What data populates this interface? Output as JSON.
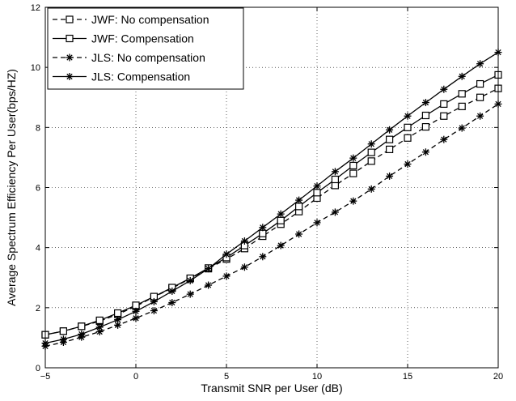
{
  "chart_data": {
    "type": "line",
    "title": "",
    "xlabel": "Transmit SNR per User (dB)",
    "ylabel": "Average Spectrum Efficiency Per User(bps/HZ)",
    "xlim": [
      -5,
      20
    ],
    "ylim": [
      0,
      12
    ],
    "xticks": [
      -5,
      0,
      5,
      10,
      15,
      20
    ],
    "yticks": [
      0,
      2,
      4,
      6,
      8,
      10,
      12
    ],
    "grid": true,
    "legend_position": "top-left",
    "x": [
      -5,
      -4,
      -3,
      -2,
      -1,
      0,
      1,
      2,
      3,
      4,
      5,
      6,
      7,
      8,
      9,
      10,
      11,
      12,
      13,
      14,
      15,
      16,
      17,
      18,
      19,
      20
    ],
    "series": [
      {
        "name": "JWF: No compensation",
        "line_style": "dashed",
        "marker": "square",
        "values": [
          1.1,
          1.22,
          1.38,
          1.55,
          1.78,
          2.05,
          2.36,
          2.65,
          2.97,
          3.3,
          3.62,
          3.97,
          4.38,
          4.78,
          5.2,
          5.65,
          6.07,
          6.47,
          6.88,
          7.27,
          7.65,
          8.02,
          8.38,
          8.7,
          9.0,
          9.3
        ]
      },
      {
        "name": "JWF: Compensation",
        "line_style": "solid",
        "marker": "square",
        "values": [
          1.1,
          1.22,
          1.38,
          1.58,
          1.82,
          2.08,
          2.37,
          2.67,
          2.98,
          3.32,
          3.67,
          4.07,
          4.47,
          4.9,
          5.37,
          5.83,
          6.27,
          6.73,
          7.17,
          7.6,
          8.0,
          8.4,
          8.78,
          9.12,
          9.45,
          9.75
        ]
      },
      {
        "name": "JLS: No compensation",
        "line_style": "dashed",
        "marker": "asterisk",
        "values": [
          0.72,
          0.85,
          1.02,
          1.2,
          1.42,
          1.65,
          1.9,
          2.17,
          2.45,
          2.75,
          3.05,
          3.35,
          3.7,
          4.07,
          4.45,
          4.83,
          5.18,
          5.55,
          5.95,
          6.38,
          6.78,
          7.18,
          7.6,
          7.98,
          8.38,
          8.78
        ]
      },
      {
        "name": "JLS: Compensation",
        "line_style": "solid",
        "marker": "asterisk",
        "values": [
          0.82,
          0.95,
          1.12,
          1.35,
          1.6,
          1.88,
          2.2,
          2.55,
          2.9,
          3.3,
          3.78,
          4.22,
          4.67,
          5.12,
          5.58,
          6.05,
          6.53,
          6.98,
          7.45,
          7.92,
          8.38,
          8.83,
          9.27,
          9.7,
          10.12,
          10.5
        ]
      }
    ]
  }
}
